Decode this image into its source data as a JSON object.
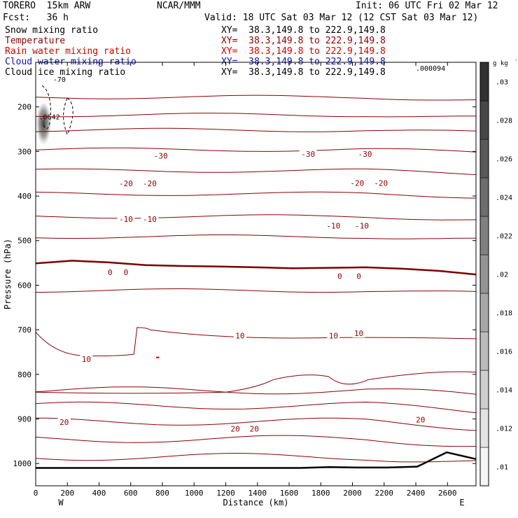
{
  "header": {
    "model": "TORERO  15km ARW",
    "org": "NCAR/MMM",
    "init": "Init: 06 UTC Fri 02 Mar 12",
    "fcst": "Fcst:   36 h",
    "valid": "Valid: 18 UTC Sat 03 Mar 12 (12 CST Sat 03 Mar 12)"
  },
  "fields": [
    {
      "name": "Snow mixing ratio",
      "xy": "XY=  38.3,149.8 to 222.9,149.8",
      "color": "#000000"
    },
    {
      "name": "Temperature",
      "xy": "XY=  38.3,149.8 to 222.9,149.8",
      "color": "#8b0000"
    },
    {
      "name": "Rain water mixing ratio",
      "xy": "XY=  38.3,149.8 to 222.9,149.8",
      "color": "#d40000"
    },
    {
      "name": "Cloud water mixing ratio",
      "xy": "XY=  38.3,149.8 to 222.9,149.8",
      "color": "#1010c0"
    },
    {
      "name": "Cloud ice mixing ratio",
      "xy": "XY=  38.3,149.8 to 222.9,149.8",
      "color": "#000000"
    }
  ],
  "colors": {
    "temp": "#8b0000",
    "freezing": "#7a0000",
    "terrain": "#000000",
    "ice": "#555555"
  },
  "chart_data": {
    "type": "contour",
    "xlabel": "Distance (km)",
    "ylabel": "Pressure (hPa)",
    "xlim": [
      0,
      2780
    ],
    "ylim": [
      1050,
      100
    ],
    "xticks": [
      0,
      200,
      400,
      600,
      800,
      1000,
      1200,
      1400,
      1600,
      1800,
      2000,
      2200,
      2400,
      2600
    ],
    "yticks": [
      200,
      300,
      400,
      500,
      600,
      700,
      800,
      900,
      1000
    ],
    "x_end_labels": {
      "left": "W",
      "right": "E"
    },
    "colorbar": {
      "unit": "g kg",
      "unit_exp": "-1",
      "levels": [
        0.01,
        0.012,
        0.014,
        0.016,
        0.018,
        0.02,
        0.022,
        0.024,
        0.026,
        0.028,
        0.03
      ],
      "tick_labels": [
        ".01",
        ".012",
        ".014",
        ".016",
        ".018",
        ".02",
        ".022",
        ".024",
        ".026",
        ".028",
        ".03"
      ]
    },
    "max_label": ".000094",
    "ice_max_label": ".0642",
    "ice_top_label": "-70",
    "temperature_labels": [
      {
        "text": "-30",
        "x": 790,
        "p": 310
      },
      {
        "text": "-30",
        "x": 1720,
        "p": 306
      },
      {
        "text": "-30",
        "x": 2080,
        "p": 306
      },
      {
        "text": "-20",
        "x": 570,
        "p": 372
      },
      {
        "text": "-20",
        "x": 720,
        "p": 372
      },
      {
        "text": "-20",
        "x": 2030,
        "p": 371
      },
      {
        "text": "-20",
        "x": 2180,
        "p": 371
      },
      {
        "text": "-10",
        "x": 570,
        "p": 452
      },
      {
        "text": "-10",
        "x": 720,
        "p": 452
      },
      {
        "text": "-10",
        "x": 1880,
        "p": 467
      },
      {
        "text": "-10",
        "x": 2060,
        "p": 467
      },
      {
        "text": "0",
        "x": 470,
        "p": 571
      },
      {
        "text": "0",
        "x": 570,
        "p": 571
      },
      {
        "text": "0",
        "x": 1920,
        "p": 580
      },
      {
        "text": "0",
        "x": 2040,
        "p": 580
      },
      {
        "text": "10",
        "x": 1290,
        "p": 713
      },
      {
        "text": "10",
        "x": 1880,
        "p": 713
      },
      {
        "text": "10",
        "x": 2040,
        "p": 708
      },
      {
        "text": "10",
        "x": 320,
        "p": 766
      },
      {
        "text": "20",
        "x": 180,
        "p": 907
      },
      {
        "text": "20",
        "x": 1260,
        "p": 922
      },
      {
        "text": "20",
        "x": 1380,
        "p": 922
      },
      {
        "text": "20",
        "x": 2430,
        "p": 902
      }
    ],
    "contours_hPa": {
      "above_0C": [
        178,
        218,
        252,
        296,
        343,
        395,
        446,
        491,
        612,
        836,
        870,
        906,
        945,
        985
      ],
      "freezing_0C": [
        551,
        545,
        549,
        555,
        557,
        558,
        560,
        562,
        561,
        560,
        563,
        568,
        576
      ]
    },
    "terrain_hPa": [
      1010,
      1010,
      1010,
      1010,
      1010,
      1010,
      1010,
      1010,
      1010,
      1010,
      1008,
      1009,
      1009,
      1007,
      975,
      990
    ]
  }
}
